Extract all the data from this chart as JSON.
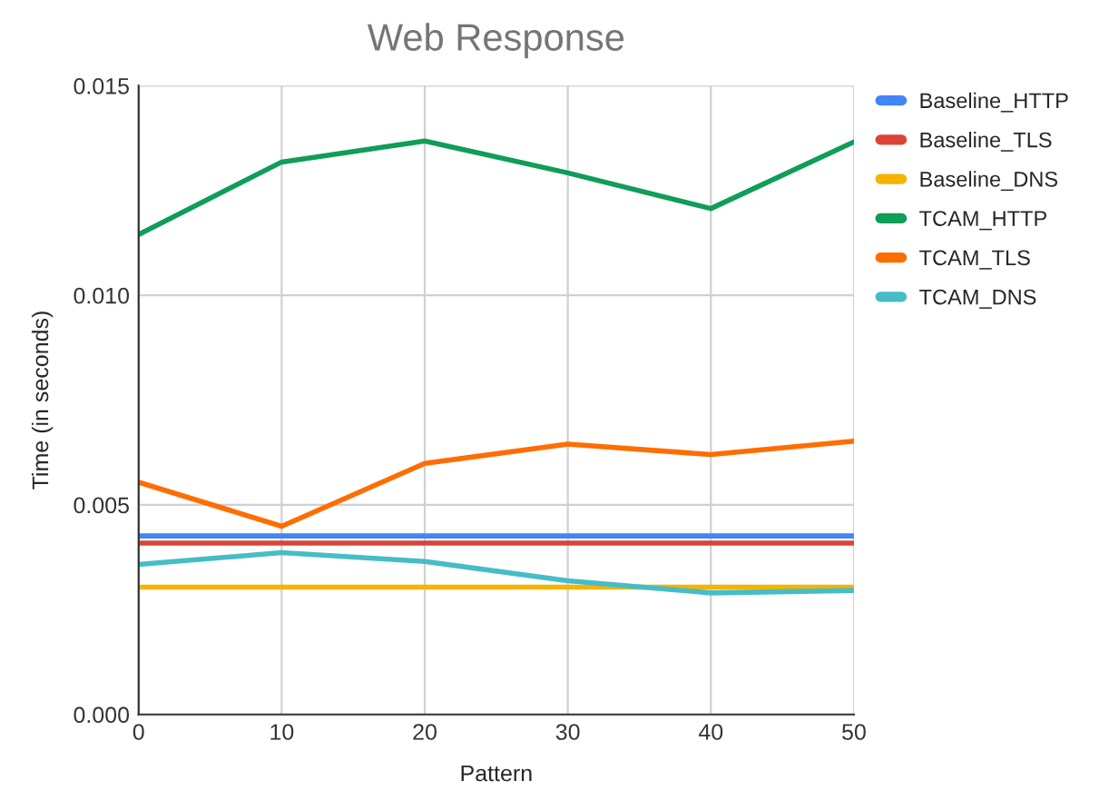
{
  "chart_data": {
    "type": "line",
    "title": "Web Response",
    "xlabel": "Pattern",
    "ylabel": "Time (in seconds)",
    "x": [
      0,
      10,
      20,
      30,
      40,
      50
    ],
    "series": [
      {
        "name": "Baseline_HTTP",
        "color": "#4285f4",
        "values": [
          0.00426,
          0.00426,
          0.00426,
          0.00426,
          0.00426,
          0.00426
        ]
      },
      {
        "name": "Baseline_TLS",
        "color": "#db4437",
        "values": [
          0.00409,
          0.00409,
          0.00409,
          0.00409,
          0.00409,
          0.00409
        ]
      },
      {
        "name": "Baseline_DNS",
        "color": "#f4b400",
        "values": [
          0.00304,
          0.00304,
          0.00304,
          0.00304,
          0.00304,
          0.00304
        ]
      },
      {
        "name": "TCAM_HTTP",
        "color": "#0f9d58",
        "values": [
          0.01145,
          0.01318,
          0.01368,
          0.01292,
          0.01207,
          0.01366
        ]
      },
      {
        "name": "TCAM_TLS",
        "color": "#ff6d01",
        "values": [
          0.00554,
          0.00449,
          0.00599,
          0.00645,
          0.0062,
          0.00652
        ]
      },
      {
        "name": "TCAM_DNS",
        "color": "#46bdc6",
        "values": [
          0.00358,
          0.00386,
          0.00365,
          0.00319,
          0.0029,
          0.00296
        ]
      }
    ],
    "xlim": [
      0,
      50
    ],
    "xticks": [
      0,
      10,
      20,
      30,
      40,
      50
    ],
    "ylim": [
      0,
      0.015
    ],
    "yticks": [
      {
        "value": 0,
        "label": "0.000"
      },
      {
        "value": 0.005,
        "label": "0.005"
      },
      {
        "value": 0.01,
        "label": "0.010"
      },
      {
        "value": 0.015,
        "label": "0.015"
      }
    ],
    "grid": true,
    "legend": "right",
    "line_style": "solid"
  }
}
